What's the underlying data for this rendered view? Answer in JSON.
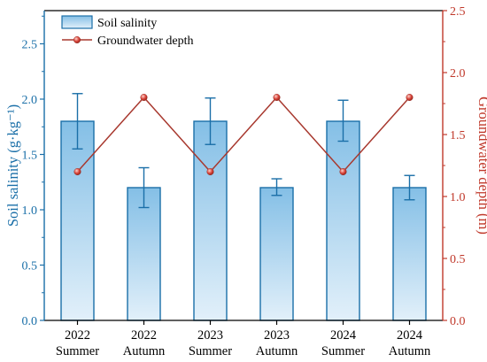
{
  "chart_data": {
    "type": "bar",
    "categories": [
      [
        "2022",
        "Summer"
      ],
      [
        "2022",
        "Autumn"
      ],
      [
        "2023",
        "Summer"
      ],
      [
        "2023",
        "Autumn"
      ],
      [
        "2024",
        "Summer"
      ],
      [
        "2024",
        "Autumn"
      ]
    ],
    "series": [
      {
        "name": "Soil salinity",
        "type": "bar",
        "axis": "left",
        "values": [
          1.8,
          1.2,
          1.8,
          1.2,
          1.8,
          1.2
        ],
        "error_low": [
          1.55,
          1.02,
          1.59,
          1.13,
          1.62,
          1.09
        ],
        "error_high": [
          2.05,
          1.38,
          2.01,
          1.28,
          1.99,
          1.31
        ]
      },
      {
        "name": "Groundwater depth",
        "type": "line",
        "axis": "right",
        "values": [
          1.2,
          1.8,
          1.2,
          1.8,
          1.2,
          1.8
        ]
      }
    ],
    "y_left": {
      "label": "Soil salinity (g·kg⁻¹)",
      "lim": [
        0,
        2.8
      ],
      "ticks": [
        0.0,
        0.5,
        1.0,
        1.5,
        2.0,
        2.5
      ],
      "color": "#1a6fa8"
    },
    "y_right": {
      "label": "Groundwater depth (m)",
      "lim": [
        0,
        2.5
      ],
      "ticks": [
        0.0,
        0.5,
        1.0,
        1.5,
        2.0,
        2.5
      ],
      "color": "#c0392b"
    },
    "legend": {
      "placement": "top-left",
      "entries": [
        "Soil salinity",
        "Groundwater depth"
      ]
    },
    "grid": false,
    "colors": {
      "bar_top": "#84bfe6",
      "bar_bottom": "#e2f0fa",
      "bar_edge": "#1a6fa8",
      "error_bar": "#1a6fa8",
      "line": "#a8392f",
      "marker": "#d9453b",
      "left_axis": "#1a6fa8",
      "right_axis": "#c0392b",
      "bottom_axis": "#000000"
    }
  }
}
